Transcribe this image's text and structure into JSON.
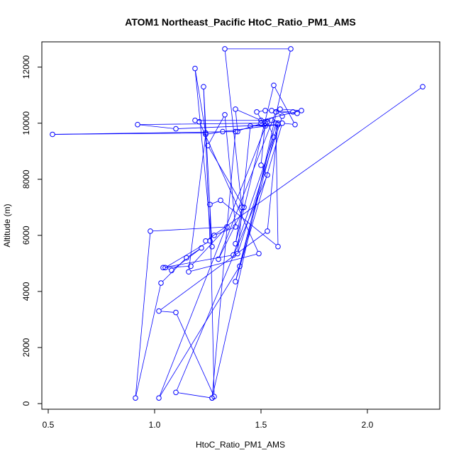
{
  "chart_data": {
    "type": "scatter",
    "title": "ATOM1 Northeast_Pacific HtoC_Ratio_PM1_AMS",
    "xlabel": "HtoC_Ratio_PM1_AMS",
    "ylabel": "Altitude (m)",
    "xlim": [
      0.47,
      2.34
    ],
    "ylim": [
      -200,
      12900
    ],
    "xticks": [
      0.5,
      1.0,
      1.5,
      2.0
    ],
    "xtick_labels": [
      "0.5",
      "1.0",
      "1.5",
      "2.0"
    ],
    "yticks": [
      0,
      2000,
      4000,
      6000,
      8000,
      10000,
      12000
    ],
    "ytick_labels": [
      "0",
      "2000",
      "4000",
      "6000",
      "8000",
      "10000",
      "12000"
    ],
    "grid": false,
    "series": [
      {
        "color": "#0000ff",
        "connected": true,
        "marker": "open-circle",
        "points": [
          [
            2.26,
            11300
          ],
          [
            1.24,
            5800
          ],
          [
            1.28,
            6000
          ],
          [
            1.38,
            6300
          ],
          [
            1.33,
            10300
          ],
          [
            1.25,
            9200
          ],
          [
            1.42,
            7000
          ],
          [
            1.3,
            5150
          ],
          [
            1.57,
            10400
          ],
          [
            1.6,
            10250
          ],
          [
            1.39,
            5350
          ],
          [
            1.45,
            9900
          ],
          [
            1.52,
            9900
          ],
          [
            1.48,
            10400
          ],
          [
            1.52,
            10450
          ],
          [
            1.55,
            10450
          ],
          [
            1.65,
            10400
          ],
          [
            1.67,
            10350
          ],
          [
            1.57,
            10400
          ],
          [
            1.59,
            10500
          ],
          [
            1.69,
            10450
          ],
          [
            1.5,
            10100
          ],
          [
            1.38,
            10500
          ],
          [
            1.39,
            9700
          ],
          [
            0.52,
            9600
          ],
          [
            1.24,
            9650
          ],
          [
            1.19,
            11950
          ],
          [
            1.27,
            5600
          ],
          [
            1.23,
            11300
          ],
          [
            1.26,
            5800
          ],
          [
            1.05,
            4850
          ],
          [
            1.08,
            4750
          ],
          [
            1.22,
            5550
          ],
          [
            1.15,
            5200
          ],
          [
            1.03,
            4300
          ],
          [
            0.91,
            200
          ],
          [
            0.98,
            6150
          ],
          [
            1.34,
            6300
          ],
          [
            1.17,
            4900
          ],
          [
            1.04,
            4850
          ],
          [
            1.37,
            5300
          ],
          [
            1.56,
            9500
          ],
          [
            1.53,
            10050
          ],
          [
            1.02,
            200
          ],
          [
            1.4,
            4900
          ],
          [
            1.58,
            10000
          ],
          [
            1.53,
            6150
          ],
          [
            1.02,
            3300
          ],
          [
            1.1,
            3250
          ],
          [
            1.28,
            250
          ],
          [
            1.26,
            7100
          ],
          [
            1.31,
            7250
          ],
          [
            1.58,
            5600
          ],
          [
            1.57,
            10000
          ],
          [
            1.38,
            4350
          ],
          [
            1.6,
            10000
          ],
          [
            1.66,
            9950
          ],
          [
            1.56,
            11350
          ],
          [
            1.38,
            5700
          ],
          [
            1.41,
            7000
          ],
          [
            1.33,
            12650
          ],
          [
            1.64,
            12650
          ],
          [
            1.27,
            200
          ],
          [
            1.38,
            9700
          ],
          [
            1.55,
            10100
          ],
          [
            1.19,
            10100
          ],
          [
            1.21,
            10050
          ],
          [
            1.49,
            5350
          ],
          [
            1.16,
            4700
          ],
          [
            1.24,
            9600
          ],
          [
            1.32,
            9700
          ],
          [
            1.58,
            9950
          ],
          [
            1.1,
            9800
          ],
          [
            0.92,
            9950
          ],
          [
            1.5,
            10000
          ],
          [
            1.52,
            10000
          ],
          [
            1.5,
            8500
          ],
          [
            1.53,
            8150
          ],
          [
            1.1,
            400
          ],
          [
            1.27,
            200
          ]
        ]
      }
    ]
  }
}
